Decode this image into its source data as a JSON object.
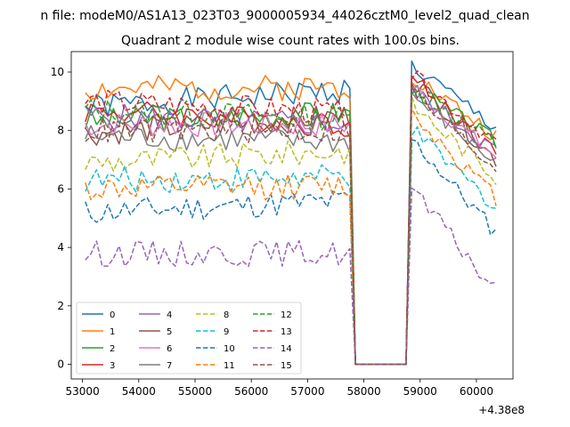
{
  "figure": {
    "suptitle": "n file: modeM0/AS1A13_023T03_9000005934_44026cztM0_level2_quad_clean",
    "title": "Quadrant 2 module wise count rates with 100.0s bins.",
    "x_offset_label": "+4.38e8"
  },
  "chart_data": {
    "type": "line",
    "title": "Quadrant 2 module wise count rates with 100.0s bins.",
    "xlabel": "",
    "ylabel": "",
    "xlim": [
      52800,
      60650
    ],
    "ylim": [
      -0.5,
      10.7
    ],
    "x_offset": 438000000,
    "x_ticks": [
      53000,
      54000,
      55000,
      56000,
      57000,
      58000,
      59000,
      60000
    ],
    "x_tick_labels": [
      "53000",
      "54000",
      "55000",
      "56000",
      "57000",
      "58000",
      "59000",
      "60000"
    ],
    "y_ticks": [
      0,
      2,
      4,
      6,
      8,
      10
    ],
    "y_tick_labels": [
      "0",
      "2",
      "4",
      "6",
      "8",
      "10"
    ],
    "grid": false,
    "legend": "lower-left, 4 columns",
    "x_start": 53050,
    "x_step": 100,
    "x_end": 60350,
    "gap": {
      "drop_at": 57750,
      "zero_start": 57850,
      "zero_end": 58750,
      "rise_at": 58850,
      "zero_value": 0.0
    },
    "series": [
      {
        "name": "0",
        "color": "#1f77b4",
        "dash": "solid",
        "pre": [
          8.8,
          9.4
        ],
        "post": [
          10.2,
          8.1
        ]
      },
      {
        "name": "1",
        "color": "#ff7f0e",
        "dash": "solid",
        "pre": [
          9.4,
          9.5
        ],
        "post": [
          9.9,
          7.8
        ]
      },
      {
        "name": "2",
        "color": "#2ca02c",
        "dash": "solid",
        "pre": [
          8.3,
          8.6
        ],
        "post": [
          9.5,
          7.6
        ]
      },
      {
        "name": "3",
        "color": "#d62728",
        "dash": "solid",
        "pre": [
          8.7,
          8.2
        ],
        "post": [
          9.8,
          7.2
        ]
      },
      {
        "name": "4",
        "color": "#9467bd",
        "dash": "solid",
        "pre": [
          8.5,
          8.2
        ],
        "post": [
          9.4,
          7.3
        ]
      },
      {
        "name": "5",
        "color": "#8c564b",
        "dash": "solid",
        "pre": [
          7.9,
          8.5
        ],
        "post": [
          9.8,
          7.0
        ]
      },
      {
        "name": "6",
        "color": "#e377c2",
        "dash": "solid",
        "pre": [
          8.2,
          8.2
        ],
        "post": [
          9.5,
          7.1
        ]
      },
      {
        "name": "7",
        "color": "#7f7f7f",
        "dash": "solid",
        "pre": [
          7.8,
          7.6
        ],
        "post": [
          9.2,
          6.9
        ]
      },
      {
        "name": "8",
        "color": "#bcbd22",
        "dash": "dashed",
        "pre": [
          6.9,
          7.3
        ],
        "post": [
          8.9,
          6.4
        ]
      },
      {
        "name": "9",
        "color": "#17becf",
        "dash": "dashed",
        "pre": [
          6.3,
          6.4
        ],
        "post": [
          8.0,
          5.4
        ]
      },
      {
        "name": "10",
        "color": "#1f77b4",
        "dash": "dashed",
        "pre": [
          5.2,
          5.6
        ],
        "post": [
          7.7,
          4.5
        ]
      },
      {
        "name": "11",
        "color": "#ff7f0e",
        "dash": "dashed",
        "pre": [
          6.0,
          6.1
        ],
        "post": [
          8.6,
          5.7
        ]
      },
      {
        "name": "12",
        "color": "#2ca02c",
        "dash": "dashed",
        "pre": [
          8.7,
          8.4
        ],
        "post": [
          9.6,
          7.5
        ]
      },
      {
        "name": "13",
        "color": "#d62728",
        "dash": "dashed",
        "pre": [
          9.0,
          8.6
        ],
        "post": [
          9.9,
          7.6
        ]
      },
      {
        "name": "14",
        "color": "#9467bd",
        "dash": "dashed",
        "pre": [
          3.8,
          3.8
        ],
        "post": [
          6.0,
          2.5
        ]
      },
      {
        "name": "15",
        "color": "#8c564b",
        "dash": "dashed",
        "pre": [
          8.0,
          8.0
        ],
        "post": [
          9.3,
          6.7
        ]
      }
    ]
  }
}
